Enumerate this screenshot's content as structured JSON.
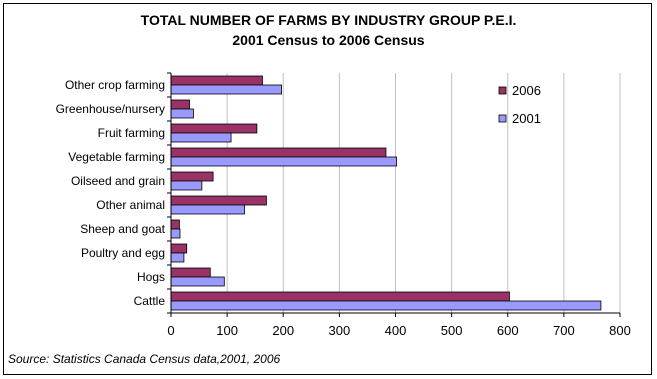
{
  "chart_data": {
    "type": "bar",
    "orientation": "horizontal",
    "title": "TOTAL NUMBER OF FARMS BY INDUSTRY GROUP P.E.I.",
    "subtitle": "2001 Census to 2006 Census",
    "categories": [
      "Other crop farming",
      "Greenhouse/nursery",
      "Fruit farming",
      "Vegetable farming",
      "Oilseed and grain",
      "Other animal",
      "Sheep and goat",
      "Poultry and egg",
      "Hogs",
      "Cattle"
    ],
    "series": [
      {
        "name": "2006",
        "color": "#993366",
        "values": [
          163,
          33,
          153,
          383,
          75,
          170,
          15,
          28,
          70,
          603
        ]
      },
      {
        "name": "2001",
        "color": "#9999ff",
        "values": [
          197,
          40,
          107,
          402,
          55,
          131,
          16,
          23,
          95,
          766
        ]
      }
    ],
    "xlim": [
      0,
      800
    ],
    "xticks": [
      0,
      100,
      200,
      300,
      400,
      500,
      600,
      700,
      800
    ],
    "grid": true,
    "legend_position": "top-right",
    "source": "Source: Statistics Canada Census data,2001, 2006"
  }
}
